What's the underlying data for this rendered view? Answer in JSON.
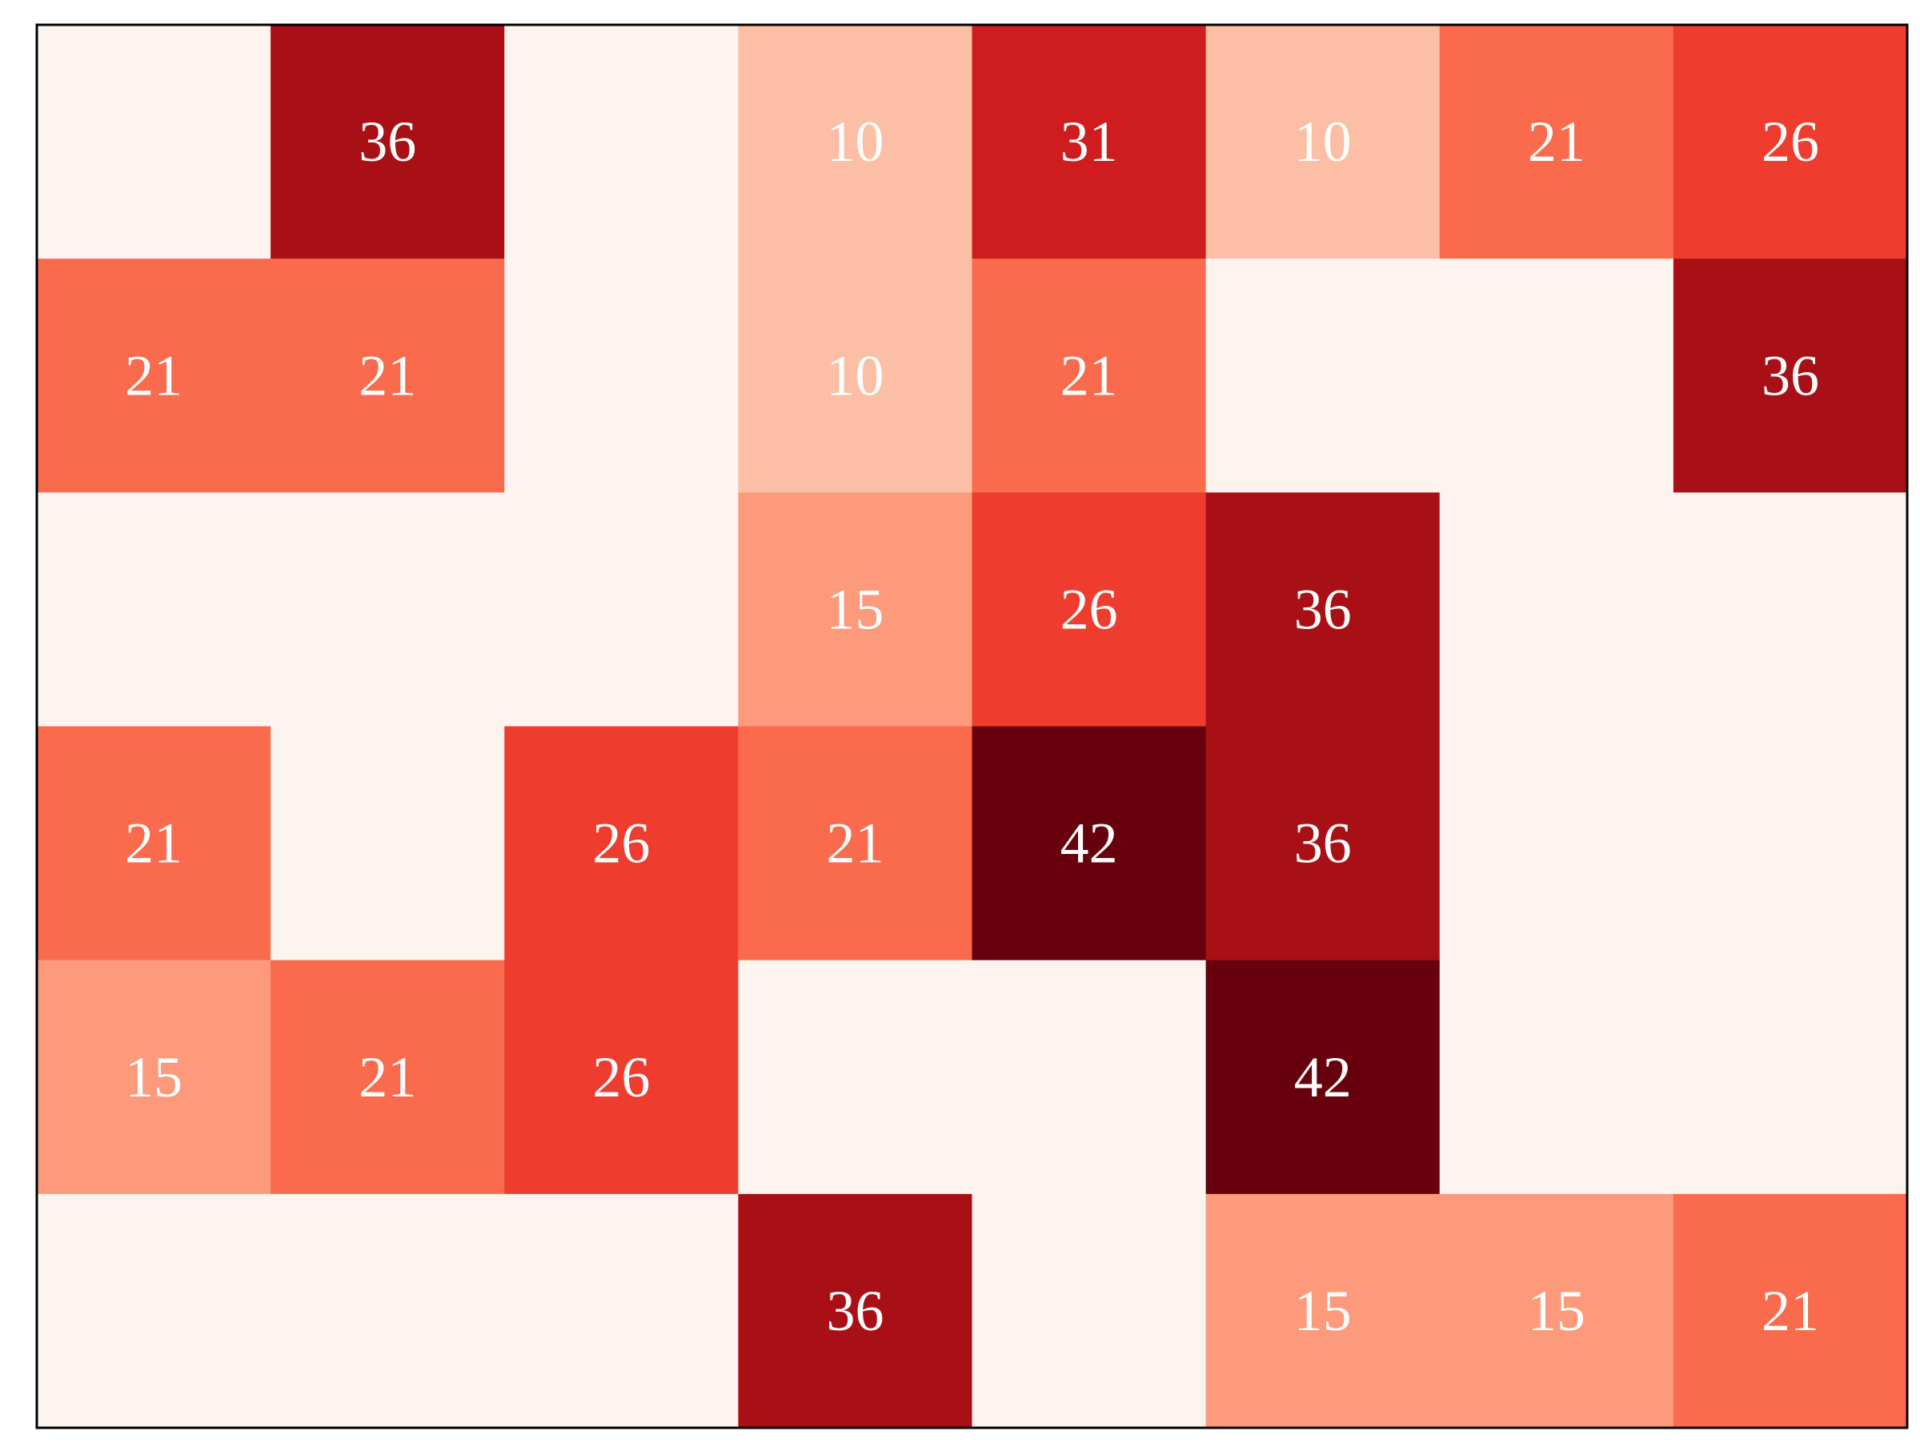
{
  "chart_data": {
    "type": "heatmap",
    "title": "",
    "xlabel": "",
    "ylabel": "",
    "n_rows": 6,
    "n_cols": 8,
    "colormap": "Reds",
    "value_range": [
      0,
      42
    ],
    "empty_color": "#fdf3ef",
    "color_by_value": {
      "10": "#fcbea5",
      "15": "#fc9a7b",
      "21": "#fa6a4d",
      "26": "#ee3c2f",
      "31": "#cf1c1e",
      "36": "#a81016",
      "42": "#67000d"
    },
    "label_color": "#ffffff",
    "border_color": "#000000",
    "grid": false,
    "matrix": [
      [
        null,
        36,
        null,
        10,
        31,
        10,
        21,
        26
      ],
      [
        21,
        21,
        null,
        10,
        21,
        null,
        null,
        36
      ],
      [
        null,
        null,
        null,
        15,
        26,
        36,
        null,
        null
      ],
      [
        21,
        null,
        26,
        21,
        42,
        36,
        null,
        null
      ],
      [
        15,
        21,
        26,
        null,
        null,
        42,
        null,
        null
      ],
      [
        null,
        null,
        null,
        36,
        null,
        15,
        15,
        21
      ]
    ]
  }
}
